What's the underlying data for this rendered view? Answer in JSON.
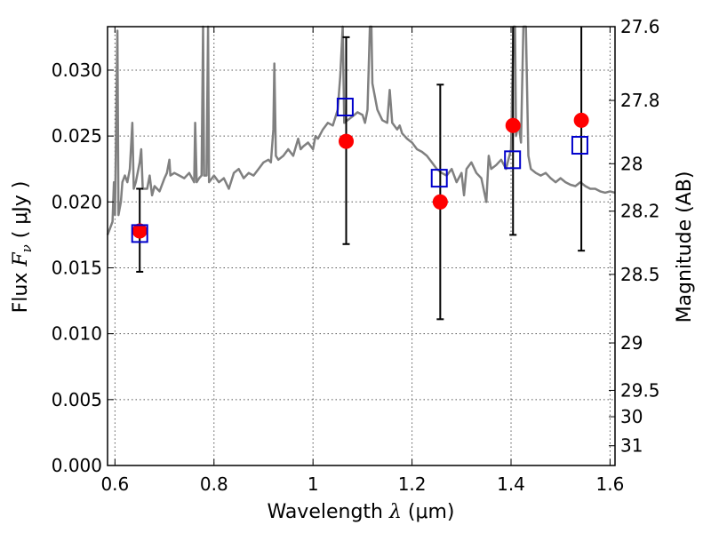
{
  "chart_data": {
    "type": "scatter",
    "title": "",
    "xlabel": "Wavelength  λ (μm)",
    "ylabel": "Flux  F_ν  ( μJy )",
    "ylabel_parts": {
      "prefix": "Flux  ",
      "symbol": "F",
      "subscript": "ν",
      "suffix": "  ( μJy )"
    },
    "xlabel_parts": {
      "prefix": "Wavelength  ",
      "symbol": "λ",
      "suffix": " (μm)"
    },
    "y2label": "Magnitude (AB)",
    "xlim": [
      0.585,
      1.61
    ],
    "ylim": [
      0.0,
      0.0333
    ],
    "grid": true,
    "x_ticks": [
      0.6,
      0.8,
      1.0,
      1.2,
      1.4,
      1.6
    ],
    "x_tick_labels": [
      "0.6",
      "0.8",
      "1",
      "1.2",
      "1.4",
      "1.6"
    ],
    "y_ticks": [
      0.0,
      0.005,
      0.01,
      0.015,
      0.02,
      0.025,
      0.03
    ],
    "y_tick_labels": [
      "0.000",
      "0.005",
      "0.010",
      "0.015",
      "0.020",
      "0.025",
      "0.030"
    ],
    "y2_ticks": [
      {
        "label": "27.6",
        "flux": 0.0333
      },
      {
        "label": "27.8",
        "flux": 0.0277
      },
      {
        "label": "28",
        "flux": 0.0229
      },
      {
        "label": "28.2",
        "flux": 0.0193
      },
      {
        "label": "28.5",
        "flux": 0.0145
      },
      {
        "label": "29",
        "flux": 0.0093
      },
      {
        "label": "29.5",
        "flux": 0.0057
      },
      {
        "label": "30",
        "flux": 0.0037
      },
      {
        "label": "31",
        "flux": 0.0015
      }
    ],
    "series": [
      {
        "kind": "spectrum-line",
        "color": "#808080",
        "points": [
          [
            0.585,
            0.0175
          ],
          [
            0.59,
            0.018
          ],
          [
            0.595,
            0.0185
          ],
          [
            0.598,
            0.0215
          ],
          [
            0.6,
            0.019
          ],
          [
            0.605,
            0.033
          ],
          [
            0.607,
            0.019
          ],
          [
            0.612,
            0.02
          ],
          [
            0.615,
            0.0215
          ],
          [
            0.62,
            0.022
          ],
          [
            0.625,
            0.0215
          ],
          [
            0.63,
            0.0225
          ],
          [
            0.635,
            0.026
          ],
          [
            0.638,
            0.021
          ],
          [
            0.642,
            0.0215
          ],
          [
            0.65,
            0.023
          ],
          [
            0.653,
            0.024
          ],
          [
            0.656,
            0.021
          ],
          [
            0.665,
            0.021
          ],
          [
            0.67,
            0.022
          ],
          [
            0.675,
            0.0205
          ],
          [
            0.68,
            0.0212
          ],
          [
            0.69,
            0.0208
          ],
          [
            0.7,
            0.0218
          ],
          [
            0.705,
            0.0222
          ],
          [
            0.71,
            0.0232
          ],
          [
            0.712,
            0.022
          ],
          [
            0.72,
            0.0222
          ],
          [
            0.73,
            0.022
          ],
          [
            0.74,
            0.0218
          ],
          [
            0.75,
            0.0222
          ],
          [
            0.76,
            0.0215
          ],
          [
            0.762,
            0.026
          ],
          [
            0.765,
            0.0215
          ],
          [
            0.77,
            0.0218
          ],
          [
            0.775,
            0.022
          ],
          [
            0.778,
            0.0333
          ],
          [
            0.78,
            0.022
          ],
          [
            0.785,
            0.022
          ],
          [
            0.788,
            0.0333
          ],
          [
            0.79,
            0.0215
          ],
          [
            0.8,
            0.022
          ],
          [
            0.81,
            0.0215
          ],
          [
            0.82,
            0.0218
          ],
          [
            0.83,
            0.021
          ],
          [
            0.84,
            0.0222
          ],
          [
            0.85,
            0.0225
          ],
          [
            0.86,
            0.0218
          ],
          [
            0.87,
            0.0222
          ],
          [
            0.88,
            0.022
          ],
          [
            0.89,
            0.0225
          ],
          [
            0.9,
            0.023
          ],
          [
            0.91,
            0.0232
          ],
          [
            0.915,
            0.023
          ],
          [
            0.92,
            0.0255
          ],
          [
            0.922,
            0.0305
          ],
          [
            0.925,
            0.0235
          ],
          [
            0.93,
            0.0232
          ],
          [
            0.94,
            0.0235
          ],
          [
            0.95,
            0.024
          ],
          [
            0.96,
            0.0235
          ],
          [
            0.97,
            0.0248
          ],
          [
            0.975,
            0.024
          ],
          [
            0.98,
            0.0242
          ],
          [
            0.99,
            0.0245
          ],
          [
            1.0,
            0.024
          ],
          [
            1.005,
            0.025
          ],
          [
            1.01,
            0.0248
          ],
          [
            1.02,
            0.0255
          ],
          [
            1.03,
            0.026
          ],
          [
            1.04,
            0.0258
          ],
          [
            1.05,
            0.027
          ],
          [
            1.055,
            0.0295
          ],
          [
            1.06,
            0.0333
          ],
          [
            1.063,
            0.026
          ],
          [
            1.07,
            0.0262
          ],
          [
            1.08,
            0.0265
          ],
          [
            1.09,
            0.0268
          ],
          [
            1.1,
            0.0266
          ],
          [
            1.105,
            0.026
          ],
          [
            1.11,
            0.027
          ],
          [
            1.115,
            0.0333
          ],
          [
            1.118,
            0.0333
          ],
          [
            1.12,
            0.029
          ],
          [
            1.13,
            0.027
          ],
          [
            1.14,
            0.0262
          ],
          [
            1.15,
            0.026
          ],
          [
            1.155,
            0.0285
          ],
          [
            1.16,
            0.026
          ],
          [
            1.17,
            0.0255
          ],
          [
            1.175,
            0.0258
          ],
          [
            1.18,
            0.0252
          ],
          [
            1.19,
            0.0248
          ],
          [
            1.2,
            0.0245
          ],
          [
            1.21,
            0.024
          ],
          [
            1.22,
            0.0238
          ],
          [
            1.23,
            0.0235
          ],
          [
            1.24,
            0.023
          ],
          [
            1.25,
            0.0225
          ],
          [
            1.26,
            0.0222
          ],
          [
            1.27,
            0.022
          ],
          [
            1.28,
            0.0225
          ],
          [
            1.29,
            0.0215
          ],
          [
            1.3,
            0.0222
          ],
          [
            1.305,
            0.0205
          ],
          [
            1.31,
            0.0225
          ],
          [
            1.32,
            0.023
          ],
          [
            1.33,
            0.0222
          ],
          [
            1.34,
            0.0218
          ],
          [
            1.35,
            0.02
          ],
          [
            1.355,
            0.0235
          ],
          [
            1.36,
            0.0225
          ],
          [
            1.37,
            0.0228
          ],
          [
            1.38,
            0.0232
          ],
          [
            1.39,
            0.0225
          ],
          [
            1.4,
            0.024
          ],
          [
            1.405,
            0.0333
          ],
          [
            1.408,
            0.0333
          ],
          [
            1.41,
            0.025
          ],
          [
            1.415,
            0.026
          ],
          [
            1.42,
            0.0245
          ],
          [
            1.425,
            0.0333
          ],
          [
            1.43,
            0.0333
          ],
          [
            1.435,
            0.0235
          ],
          [
            1.44,
            0.0225
          ],
          [
            1.45,
            0.0222
          ],
          [
            1.46,
            0.022
          ],
          [
            1.47,
            0.0222
          ],
          [
            1.48,
            0.0218
          ],
          [
            1.49,
            0.0215
          ],
          [
            1.5,
            0.0218
          ],
          [
            1.51,
            0.0215
          ],
          [
            1.52,
            0.0213
          ],
          [
            1.53,
            0.0212
          ],
          [
            1.54,
            0.0215
          ],
          [
            1.55,
            0.0212
          ],
          [
            1.56,
            0.021
          ],
          [
            1.57,
            0.021
          ],
          [
            1.58,
            0.0208
          ],
          [
            1.59,
            0.0207
          ],
          [
            1.6,
            0.0208
          ],
          [
            1.61,
            0.0207
          ]
        ]
      },
      {
        "kind": "observed-red-circles",
        "color": "#ff0000",
        "points": [
          {
            "x": 0.65,
            "y": 0.0178,
            "yerr_lo": 0.0147,
            "yerr_hi": 0.021
          },
          {
            "x": 1.067,
            "y": 0.0246,
            "yerr_lo": 0.0168,
            "yerr_hi": 0.0325
          },
          {
            "x": 1.257,
            "y": 0.02,
            "yerr_lo": 0.0111,
            "yerr_hi": 0.0289
          },
          {
            "x": 1.404,
            "y": 0.0258,
            "yerr_lo": 0.0175,
            "yerr_hi": 0.0333
          },
          {
            "x": 1.542,
            "y": 0.0262,
            "yerr_lo": 0.0163,
            "yerr_hi": 0.0333
          }
        ]
      },
      {
        "kind": "model-blue-squares",
        "color": "#0000cc",
        "points": [
          {
            "x": 0.65,
            "y": 0.0176
          },
          {
            "x": 1.065,
            "y": 0.0272
          },
          {
            "x": 1.255,
            "y": 0.0218
          },
          {
            "x": 1.403,
            "y": 0.0232
          },
          {
            "x": 1.539,
            "y": 0.0243
          }
        ]
      }
    ]
  }
}
